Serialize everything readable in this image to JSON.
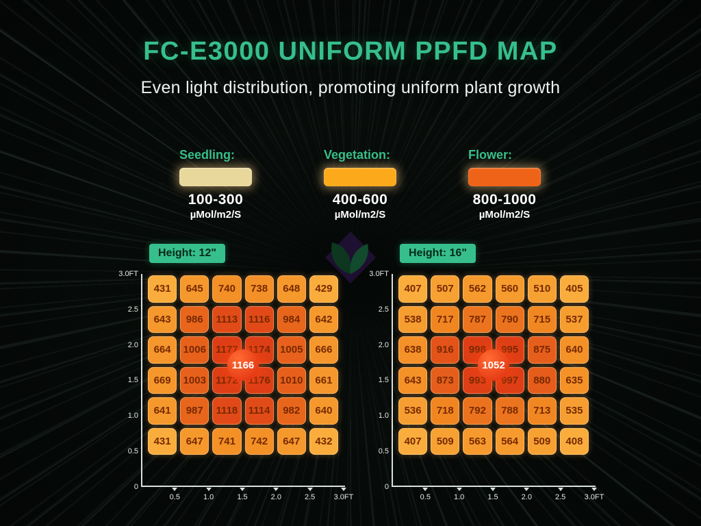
{
  "header": {
    "title": "FC-E3000 UNIFORM PPFD MAP",
    "subtitle": "Even light distribution, promoting uniform plant growth"
  },
  "legend": {
    "items": [
      {
        "label": "Seedling:",
        "range": "100-300",
        "unit": "µMol/m2/S",
        "color": "#E9D89C"
      },
      {
        "label": "Vegetation:",
        "range": "400-600",
        "unit": "µMol/m2/S",
        "color": "#FCAA1B"
      },
      {
        "label": "Flower:",
        "range": "800-1000",
        "unit": "µMol/m2/S",
        "color": "#EE6317"
      }
    ]
  },
  "chart_data": [
    {
      "type": "heatmap",
      "height_label": "Height: 12\"",
      "center_value": "1166",
      "value_unit": "µMol/m2/S",
      "x_ticks": [
        "0.5",
        "1.0",
        "1.5",
        "2.0",
        "2.5",
        "3.0FT"
      ],
      "y_ticks": [
        "3.0FT",
        "2.5",
        "2.0",
        "1.5",
        "1.0",
        "0.5",
        "0"
      ],
      "rows": [
        [
          431,
          645,
          740,
          738,
          648,
          429
        ],
        [
          643,
          986,
          1113,
          1116,
          984,
          642
        ],
        [
          664,
          1006,
          1177,
          1174,
          1005,
          666
        ],
        [
          669,
          1003,
          1172,
          1176,
          1010,
          661
        ],
        [
          641,
          987,
          1118,
          1114,
          982,
          640
        ],
        [
          431,
          647,
          741,
          742,
          647,
          432
        ]
      ]
    },
    {
      "type": "heatmap",
      "height_label": "Height: 16\"",
      "center_value": "1052",
      "value_unit": "µMol/m2/S",
      "x_ticks": [
        "0.5",
        "1.0",
        "1.5",
        "2.0",
        "2.5",
        "3.0FT"
      ],
      "y_ticks": [
        "3.0FT",
        "2.5",
        "2.0",
        "1.5",
        "1.0",
        "0.5",
        "0"
      ],
      "rows": [
        [
          407,
          507,
          562,
          560,
          510,
          405
        ],
        [
          538,
          717,
          787,
          790,
          715,
          537
        ],
        [
          638,
          916,
          998,
          995,
          875,
          640
        ],
        [
          643,
          873,
          993,
          997,
          880,
          635
        ],
        [
          536,
          718,
          792,
          788,
          713,
          535
        ],
        [
          407,
          509,
          563,
          564,
          509,
          408
        ]
      ]
    }
  ],
  "heat_scale": {
    "stops": [
      "#FAAD3C",
      "#F28A22",
      "#DE3E16"
    ],
    "cell_text_color": "#772900"
  },
  "colors": {
    "accent_green": "#36BF8C",
    "badge_text": "#06281B",
    "circle_red": "#DE2B0C",
    "axis": "#D9E2DD",
    "title_green": "#36BF8C"
  }
}
